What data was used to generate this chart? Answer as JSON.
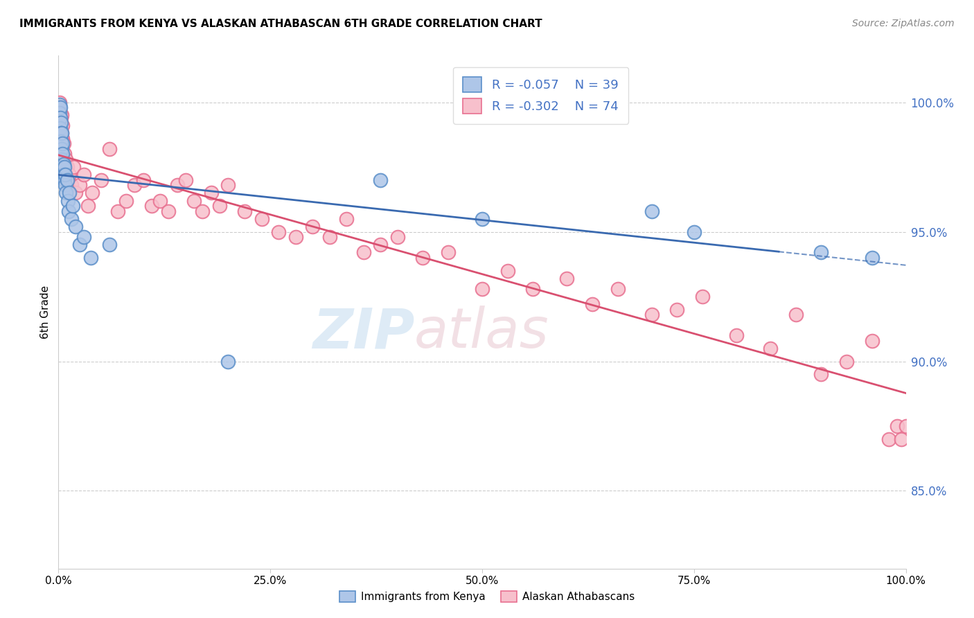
{
  "title": "IMMIGRANTS FROM KENYA VS ALASKAN ATHABASCAN 6TH GRADE CORRELATION CHART",
  "source": "Source: ZipAtlas.com",
  "ylabel": "6th Grade",
  "r_blue": -0.057,
  "n_blue": 39,
  "r_pink": -0.302,
  "n_pink": 74,
  "legend_blue": "Immigrants from Kenya",
  "legend_pink": "Alaskan Athabascans",
  "blue_fill": "#aec6e8",
  "pink_fill": "#f7c0cc",
  "blue_edge": "#5b8fc9",
  "pink_edge": "#e87090",
  "blue_line": "#3a6ab0",
  "pink_line": "#d95070",
  "x_min": 0.0,
  "x_max": 1.0,
  "y_min": 0.82,
  "y_max": 1.018,
  "ytick_positions": [
    0.85,
    0.9,
    0.95,
    1.0
  ],
  "ytick_labels": [
    "85.0%",
    "90.0%",
    "95.0%",
    "100.0%"
  ],
  "blue_x": [
    0.001,
    0.001,
    0.002,
    0.002,
    0.002,
    0.003,
    0.003,
    0.003,
    0.004,
    0.004,
    0.004,
    0.005,
    0.005,
    0.005,
    0.006,
    0.006,
    0.007,
    0.007,
    0.008,
    0.008,
    0.009,
    0.01,
    0.011,
    0.012,
    0.013,
    0.015,
    0.017,
    0.02,
    0.025,
    0.03,
    0.038,
    0.06,
    0.2,
    0.38,
    0.5,
    0.7,
    0.75,
    0.9,
    0.96
  ],
  "blue_y": [
    0.999,
    0.996,
    0.998,
    0.994,
    0.99,
    0.992,
    0.988,
    0.985,
    0.982,
    0.988,
    0.978,
    0.984,
    0.98,
    0.975,
    0.976,
    0.972,
    0.97,
    0.975,
    0.968,
    0.972,
    0.965,
    0.97,
    0.962,
    0.958,
    0.965,
    0.955,
    0.96,
    0.952,
    0.945,
    0.948,
    0.94,
    0.945,
    0.9,
    0.97,
    0.955,
    0.958,
    0.95,
    0.942,
    0.94
  ],
  "pink_x": [
    0.001,
    0.001,
    0.002,
    0.002,
    0.003,
    0.003,
    0.004,
    0.004,
    0.005,
    0.005,
    0.006,
    0.006,
    0.007,
    0.008,
    0.008,
    0.009,
    0.01,
    0.01,
    0.012,
    0.013,
    0.015,
    0.018,
    0.02,
    0.025,
    0.03,
    0.035,
    0.04,
    0.05,
    0.06,
    0.07,
    0.08,
    0.09,
    0.1,
    0.11,
    0.12,
    0.13,
    0.14,
    0.15,
    0.16,
    0.17,
    0.18,
    0.19,
    0.2,
    0.22,
    0.24,
    0.26,
    0.28,
    0.3,
    0.32,
    0.34,
    0.36,
    0.38,
    0.4,
    0.43,
    0.46,
    0.5,
    0.53,
    0.56,
    0.6,
    0.63,
    0.66,
    0.7,
    0.73,
    0.76,
    0.8,
    0.84,
    0.87,
    0.9,
    0.93,
    0.96,
    0.98,
    0.99,
    0.995,
    1.0
  ],
  "pink_y": [
    1.0,
    0.998,
    0.996,
    0.992,
    0.994,
    0.989,
    0.988,
    0.995,
    0.986,
    0.991,
    0.984,
    0.978,
    0.98,
    0.976,
    0.972,
    0.978,
    0.97,
    0.975,
    0.968,
    0.972,
    0.968,
    0.975,
    0.965,
    0.968,
    0.972,
    0.96,
    0.965,
    0.97,
    0.982,
    0.958,
    0.962,
    0.968,
    0.97,
    0.96,
    0.962,
    0.958,
    0.968,
    0.97,
    0.962,
    0.958,
    0.965,
    0.96,
    0.968,
    0.958,
    0.955,
    0.95,
    0.948,
    0.952,
    0.948,
    0.955,
    0.942,
    0.945,
    0.948,
    0.94,
    0.942,
    0.928,
    0.935,
    0.928,
    0.932,
    0.922,
    0.928,
    0.918,
    0.92,
    0.925,
    0.91,
    0.905,
    0.918,
    0.895,
    0.9,
    0.908,
    0.87,
    0.875,
    0.87,
    0.875
  ]
}
